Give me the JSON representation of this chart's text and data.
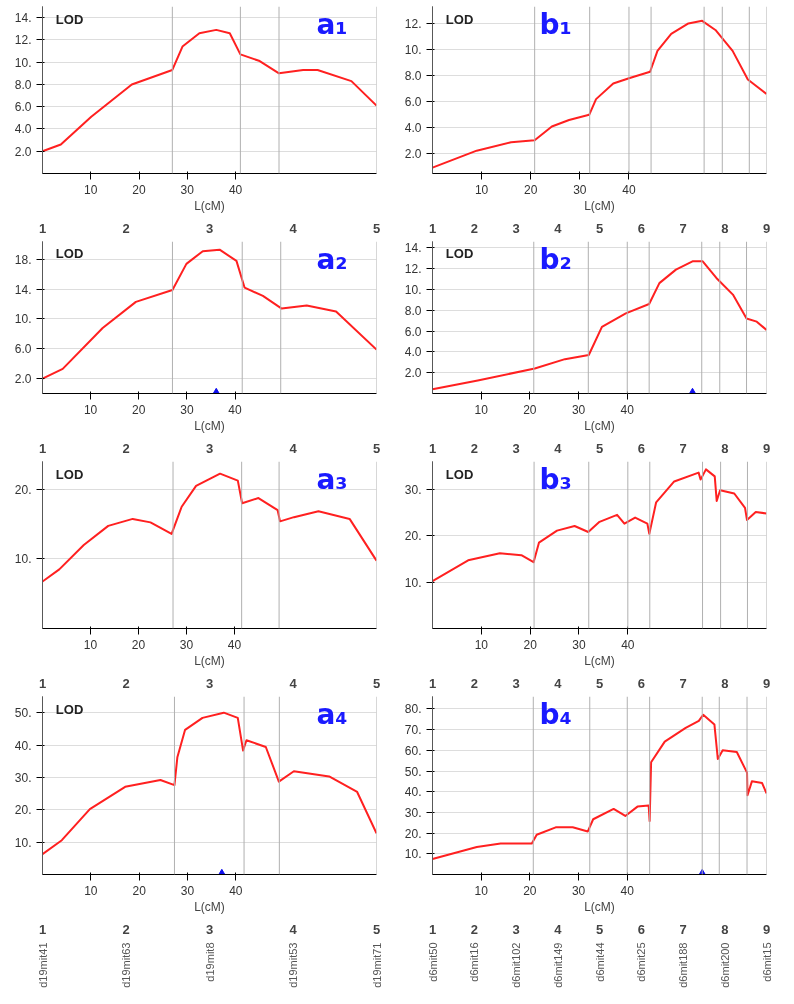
{
  "chart_data": [
    {
      "type": "line",
      "title": "a₁",
      "ylabel": "LOD",
      "xlabel": "L(cM)",
      "xlim": [
        0,
        69.2
      ],
      "ylim": [
        0,
        15
      ],
      "xticks": [
        10,
        20,
        30,
        40
      ],
      "yticks": [
        {
          "value": 2,
          "label": "2.0"
        },
        {
          "value": 4,
          "label": "4.0"
        },
        {
          "value": 6,
          "label": "6.0"
        },
        {
          "value": 8,
          "label": "8.0"
        },
        {
          "value": 10,
          "label": "10."
        },
        {
          "value": 12,
          "label": "12."
        },
        {
          "value": 14,
          "label": "14."
        }
      ],
      "grid": "y",
      "series": [
        {
          "color": "#ff2020",
          "x": [
            0,
            3.8,
            10.1,
            18.5,
            26.9,
            29,
            32.5,
            36,
            38.8,
            41,
            45,
            49,
            54,
            57,
            64,
            69.2
          ],
          "values": [
            2.0,
            2.6,
            5.1,
            8.0,
            9.3,
            11.4,
            12.6,
            12.9,
            12.6,
            10.7,
            10.1,
            9.0,
            9.3,
            9.3,
            8.3,
            6.1
          ]
        }
      ],
      "ref_lines": [
        {
          "axis": "x",
          "value": 0
        },
        {
          "axis": "x",
          "value": 26.9
        },
        {
          "axis": "x",
          "value": 41
        },
        {
          "axis": "x",
          "value": 49
        },
        {
          "axis": "x",
          "value": 69.2
        }
      ],
      "annotations": [
        "1",
        "2",
        "3",
        "4",
        "5"
      ]
    },
    {
      "type": "line",
      "title": "b₁",
      "ylabel": "LOD",
      "xlabel": "L(cM)",
      "xlim": [
        0,
        68
      ],
      "ylim": [
        0.5,
        13.3
      ],
      "xticks": [
        10,
        20,
        30,
        40
      ],
      "yticks": [
        {
          "value": 2,
          "label": "2.0"
        },
        {
          "value": 4,
          "label": "4.0"
        },
        {
          "value": 6,
          "label": "6.0"
        },
        {
          "value": 8,
          "label": "8.0"
        },
        {
          "value": 10,
          "label": "10."
        },
        {
          "value": 12,
          "label": "12."
        }
      ],
      "grid": "y",
      "series": [
        {
          "color": "#ff2020",
          "x": [
            0,
            9,
            16,
            20.8,
            24.3,
            27.8,
            31.9,
            33.3,
            36.8,
            40,
            44.3,
            45.8,
            48.6,
            52.1,
            54.9,
            57.6,
            61.1,
            64.2,
            68
          ],
          "values": [
            0.95,
            2.25,
            2.9,
            3.05,
            4.1,
            4.6,
            5.0,
            6.2,
            7.4,
            7.8,
            8.3,
            9.9,
            11.2,
            12.0,
            12.2,
            11.5,
            9.9,
            7.7,
            6.6
          ]
        }
      ],
      "ref_lines": [
        {
          "axis": "x",
          "value": 0
        },
        {
          "axis": "x",
          "value": 20.8
        },
        {
          "axis": "x",
          "value": 32
        },
        {
          "axis": "x",
          "value": 40
        },
        {
          "axis": "x",
          "value": 44.5
        },
        {
          "axis": "x",
          "value": 55.3
        },
        {
          "axis": "x",
          "value": 59
        },
        {
          "axis": "x",
          "value": 64.5
        },
        {
          "axis": "x",
          "value": 68
        }
      ],
      "annotations": [
        "1",
        "2",
        "3",
        "4",
        "5",
        "6",
        "7",
        "8",
        "9"
      ]
    },
    {
      "type": "line",
      "title": "a₂",
      "ylabel": "LOD",
      "xlabel": "L(cM)",
      "xlim": [
        0,
        69.4
      ],
      "ylim": [
        0,
        20.4
      ],
      "xticks": [
        10,
        20,
        30,
        40
      ],
      "yticks": [
        {
          "value": 2,
          "label": "2.0"
        },
        {
          "value": 6,
          "label": "6.0"
        },
        {
          "value": 10,
          "label": "10."
        },
        {
          "value": 14,
          "label": "14."
        },
        {
          "value": 18,
          "label": "18."
        }
      ],
      "grid": "y",
      "series": [
        {
          "color": "#ff2020",
          "x": [
            0,
            4.2,
            12.5,
            19.4,
            27,
            29.9,
            33.3,
            36.8,
            40.3,
            42,
            45.8,
            49.7,
            54.9,
            61,
            69.4
          ],
          "values": [
            2.0,
            3.3,
            8.8,
            12.3,
            13.9,
            17.4,
            19.1,
            19.3,
            17.8,
            14.2,
            13.1,
            11.4,
            11.8,
            11.0,
            5.9
          ]
        },
        {
          "type": "scatter",
          "marker": "triangle",
          "color": "#1010ee",
          "x": [
            36.1
          ],
          "values": [
            0
          ]
        }
      ],
      "ref_lines": [
        {
          "axis": "x",
          "value": 0
        },
        {
          "axis": "x",
          "value": 27
        },
        {
          "axis": "x",
          "value": 41.5
        },
        {
          "axis": "x",
          "value": 49.5
        },
        {
          "axis": "x",
          "value": 69.4
        }
      ],
      "annotations": [
        "1",
        "2",
        "3",
        "4",
        "5"
      ]
    },
    {
      "type": "line",
      "title": "b₂",
      "ylabel": "LOD",
      "xlabel": "L(cM)",
      "xlim": [
        0,
        68.6
      ],
      "ylim": [
        0,
        14.6
      ],
      "xticks": [
        10,
        20,
        30,
        40
      ],
      "yticks": [
        {
          "value": 2,
          "label": "2.0"
        },
        {
          "value": 4,
          "label": "4.0"
        },
        {
          "value": 6,
          "label": "6.0"
        },
        {
          "value": 8,
          "label": "8.0"
        },
        {
          "value": 10,
          "label": "10."
        },
        {
          "value": 12,
          "label": "12."
        },
        {
          "value": 14,
          "label": "14."
        }
      ],
      "grid": "y",
      "series": [
        {
          "color": "#ff2020",
          "x": [
            0,
            9.3,
            21,
            27.2,
            32.1,
            34.8,
            39.7,
            44.5,
            46.6,
            50,
            53.4,
            55.5,
            58.3,
            61.7,
            64.5,
            66.6,
            68.6
          ],
          "values": [
            0.4,
            1.25,
            2.4,
            3.3,
            3.7,
            6.4,
            7.7,
            8.6,
            10.6,
            11.9,
            12.7,
            12.7,
            11.1,
            9.5,
            7.2,
            6.9,
            6.1
          ]
        },
        {
          "type": "scatter",
          "marker": "triangle",
          "color": "#1010ee",
          "x": [
            53.4
          ],
          "values": [
            0
          ]
        }
      ],
      "ref_lines": [
        {
          "axis": "x",
          "value": 0
        },
        {
          "axis": "x",
          "value": 20.8
        },
        {
          "axis": "x",
          "value": 32
        },
        {
          "axis": "x",
          "value": 40
        },
        {
          "axis": "x",
          "value": 44.5
        },
        {
          "axis": "x",
          "value": 55.3
        },
        {
          "axis": "x",
          "value": 59
        },
        {
          "axis": "x",
          "value": 64.5
        },
        {
          "axis": "x",
          "value": 68.6
        }
      ],
      "annotations": [
        "1",
        "2",
        "3",
        "4",
        "5",
        "6",
        "7",
        "8",
        "9"
      ]
    },
    {
      "type": "line",
      "title": "a₃",
      "ylabel": "LOD",
      "xlabel": "L(cM)",
      "xlim": [
        0,
        69.6
      ],
      "ylim": [
        0,
        24
      ],
      "xticks": [
        10,
        20,
        30,
        40
      ],
      "yticks": [
        {
          "value": 10,
          "label": "10."
        },
        {
          "value": 20,
          "label": "20."
        }
      ],
      "grid": "y",
      "series": [
        {
          "color": "#ff2020",
          "x": [
            0,
            3.5,
            8.6,
            13.7,
            18.8,
            22.5,
            26.9,
            29,
            32,
            37,
            40.7,
            41.6,
            45,
            49,
            49.5,
            52.4,
            57.5,
            64,
            69.6
          ],
          "values": [
            6.75,
            8.5,
            12,
            14.75,
            15.75,
            15.25,
            13.6,
            17.5,
            20.5,
            22.25,
            21.25,
            18,
            18.75,
            17,
            15.4,
            16,
            16.85,
            15.75,
            9.75
          ]
        }
      ],
      "ref_lines": [
        {
          "axis": "x",
          "value": 0
        },
        {
          "axis": "x",
          "value": 27.2
        },
        {
          "axis": "x",
          "value": 41.5
        },
        {
          "axis": "x",
          "value": 49.3
        },
        {
          "axis": "x",
          "value": 69.6
        }
      ],
      "annotations": [
        "1",
        "2",
        "3",
        "4",
        "5"
      ]
    },
    {
      "type": "line",
      "title": "b₃",
      "ylabel": "LOD",
      "xlabel": "L(cM)",
      "xlim": [
        0,
        68.4
      ],
      "ylim": [
        0,
        36
      ],
      "xticks": [
        10,
        20,
        30,
        40
      ],
      "yticks": [
        {
          "value": 10,
          "label": "10."
        },
        {
          "value": 20,
          "label": "20."
        },
        {
          "value": 30,
          "label": "30."
        }
      ],
      "grid": "y",
      "series": [
        {
          "color": "#ff2020",
          "x": [
            0,
            7.3,
            13.8,
            18.2,
            20.7,
            21.8,
            25.5,
            29.1,
            31.9,
            34.2,
            37.8,
            39.3,
            41.5,
            44,
            44.4,
            45.8,
            49.5,
            54.5,
            54.9,
            56,
            57.8,
            58.2,
            58.9,
            61.8,
            64,
            64.4,
            66.2,
            68.4
          ],
          "values": [
            10.2,
            14.7,
            16.2,
            15.8,
            14.3,
            18.5,
            21.1,
            22.1,
            20.8,
            23,
            24.5,
            22.6,
            23.9,
            22.6,
            20.4,
            27.2,
            31.7,
            33.6,
            32.1,
            34.3,
            32.8,
            27.5,
            29.8,
            29.1,
            26,
            23.4,
            25.1,
            24.8
          ]
        }
      ],
      "ref_lines": [
        {
          "axis": "x",
          "value": 0
        },
        {
          "axis": "x",
          "value": 20.8
        },
        {
          "axis": "x",
          "value": 32
        },
        {
          "axis": "x",
          "value": 40
        },
        {
          "axis": "x",
          "value": 44.5
        },
        {
          "axis": "x",
          "value": 55.3
        },
        {
          "axis": "x",
          "value": 59
        },
        {
          "axis": "x",
          "value": 64.5
        },
        {
          "axis": "x",
          "value": 68.4
        }
      ],
      "annotations": [
        "1",
        "2",
        "3",
        "4",
        "5",
        "6",
        "7",
        "8",
        "9"
      ]
    },
    {
      "type": "line",
      "title": "a₄",
      "ylabel": "LOD",
      "xlabel": "L(cM)",
      "xlim": [
        0,
        69.1
      ],
      "ylim": [
        0,
        55
      ],
      "xticks": [
        10,
        20,
        30,
        40
      ],
      "yticks": [
        {
          "value": 10,
          "label": "10."
        },
        {
          "value": 20,
          "label": "20."
        },
        {
          "value": 30,
          "label": "30."
        },
        {
          "value": 40,
          "label": "40."
        },
        {
          "value": 50,
          "label": "50."
        }
      ],
      "grid": "y",
      "series": [
        {
          "color": "#ff2020",
          "x": [
            0,
            4,
            9.8,
            17.1,
            24.4,
            27.3,
            27.9,
            29.5,
            33.1,
            37.5,
            40.4,
            41.5,
            42.2,
            46.2,
            48.9,
            52,
            59.3,
            65.1,
            69.1
          ],
          "values": [
            6.3,
            10.6,
            20.2,
            27.1,
            29.2,
            27.6,
            36.2,
            44.7,
            48.4,
            50,
            48.4,
            38.3,
            41.5,
            39.4,
            28.7,
            31.9,
            30.3,
            25.5,
            12.7
          ]
        },
        {
          "type": "scatter",
          "marker": "triangle",
          "color": "#1010ee",
          "x": [
            37.1
          ],
          "values": [
            0
          ]
        }
      ],
      "ref_lines": [
        {
          "axis": "x",
          "value": 0
        },
        {
          "axis": "x",
          "value": 27.3
        },
        {
          "axis": "x",
          "value": 41.7
        },
        {
          "axis": "x",
          "value": 49
        },
        {
          "axis": "x",
          "value": 69.1
        }
      ],
      "annotations": [
        "1",
        "2",
        "3",
        "4",
        "5",
        "d19mit41",
        "d19mit63",
        "d19mit8",
        "d19mit53",
        "d19mit71"
      ]
    },
    {
      "type": "line",
      "title": "b₄",
      "xlabel": "L(cM)",
      "xlim": [
        0,
        68.6
      ],
      "ylim": [
        0,
        86
      ],
      "xticks": [
        10,
        20,
        30,
        40
      ],
      "yticks": [
        {
          "value": 10,
          "label": "10."
        },
        {
          "value": 20,
          "label": "20."
        },
        {
          "value": 30,
          "label": "30."
        },
        {
          "value": 40,
          "label": "40."
        },
        {
          "value": 50,
          "label": "50."
        },
        {
          "value": 60,
          "label": "60."
        },
        {
          "value": 70,
          "label": "70."
        },
        {
          "value": 80,
          "label": "80."
        }
      ],
      "grid": "y",
      "series": [
        {
          "color": "#ff2020",
          "x": [
            0,
            9.1,
            14,
            20.4,
            21.4,
            25.3,
            28.8,
            31.9,
            33,
            37.2,
            39.6,
            42.1,
            44.4,
            44.6,
            44.9,
            47.7,
            52,
            54.7,
            55.6,
            57.9,
            58.6,
            59.6,
            62.5,
            64.6,
            64.7,
            65.6,
            67.7,
            68.6
          ],
          "values": [
            7.5,
            13.3,
            15,
            15,
            19.2,
            22.8,
            22.8,
            20.8,
            26.7,
            31.7,
            28.3,
            32.8,
            33.3,
            25.8,
            54.2,
            64.2,
            70.8,
            74.2,
            77.2,
            72.5,
            55.8,
            60,
            59.2,
            49.2,
            38.3,
            45,
            44.2,
            39.2
          ]
        },
        {
          "type": "scatter",
          "marker": "triangle",
          "color": "#1010ee",
          "x": [
            55.4
          ],
          "values": [
            0
          ]
        }
      ],
      "ref_lines": [
        {
          "axis": "x",
          "value": 0
        },
        {
          "axis": "x",
          "value": 20.7
        },
        {
          "axis": "x",
          "value": 32.3
        },
        {
          "axis": "x",
          "value": 40
        },
        {
          "axis": "x",
          "value": 44.6
        },
        {
          "axis": "x",
          "value": 55.4
        },
        {
          "axis": "x",
          "value": 58.9
        },
        {
          "axis": "x",
          "value": 64.6
        },
        {
          "axis": "x",
          "value": 68.6
        }
      ],
      "annotations": [
        "1",
        "2",
        "3",
        "4",
        "5",
        "6",
        "7",
        "8",
        "9",
        "d6mit50",
        "d6mit16",
        "d6mit102",
        "d6mit149",
        "d6mit44",
        "d6mit25",
        "d6mit188",
        "d6mit200",
        "d6mit15"
      ]
    }
  ]
}
